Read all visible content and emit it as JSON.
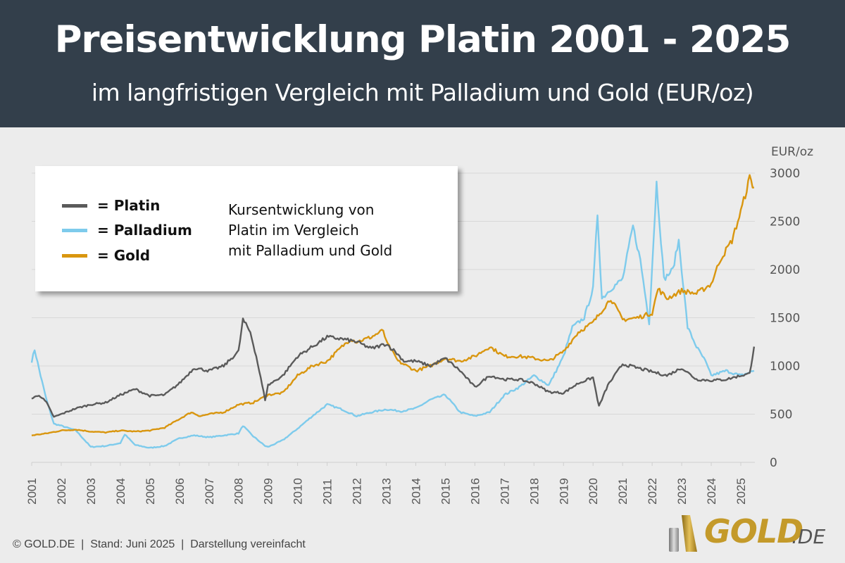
{
  "header": {
    "title": "Preisentwicklung Platin 2001 - 2025",
    "subtitle": "im langfristigen Vergleich mit Palladium und Gold (EUR/oz)"
  },
  "legend": {
    "items": [
      {
        "label": "= Platin",
        "color": "#5a5a5a"
      },
      {
        "label": "= Palladium",
        "color": "#7ecbec"
      },
      {
        "label": "= Gold",
        "color": "#d9960f"
      }
    ],
    "note_lines": [
      "Kursentwicklung von",
      "Platin im Vergleich",
      "mit Palladium und Gold"
    ]
  },
  "footer": {
    "text": "© GOLD.DE  |  Stand: Juni 2025  |  Darstellung vereinfacht"
  },
  "logo": {
    "text": "GOLD",
    "suffix": ".DE"
  },
  "chart_data": {
    "type": "line",
    "title": "Preisentwicklung Platin 2001 - 2025",
    "ylabel": "EUR/oz",
    "xlabel": "",
    "ylim": [
      0,
      3000
    ],
    "xlim": [
      2001,
      2025.45
    ],
    "y_ticks": [
      "0",
      "500",
      "1000",
      "1500",
      "2000",
      "2500",
      "3000"
    ],
    "x_ticks": [
      "2001",
      "2002",
      "2003",
      "2004",
      "2005",
      "2006",
      "2007",
      "2008",
      "2009",
      "2010",
      "2011",
      "2012",
      "2013",
      "2014",
      "2015",
      "2016",
      "2017",
      "2018",
      "2019",
      "2020",
      "2021",
      "2022",
      "2023",
      "2024",
      "2025"
    ],
    "grid": true,
    "legend_position": "top-left",
    "series": [
      {
        "name": "Platin",
        "color": "#5a5a5a",
        "x": [
          2001,
          2001.25,
          2001.5,
          2001.75,
          2002,
          2002.5,
          2003,
          2003.5,
          2004,
          2004.5,
          2005,
          2005.5,
          2006,
          2006.5,
          2007,
          2007.5,
          2008,
          2008.15,
          2008.4,
          2008.6,
          2008.9,
          2009,
          2009.5,
          2010,
          2010.5,
          2011,
          2011.5,
          2012,
          2012.5,
          2013,
          2013.3,
          2013.6,
          2014,
          2014.5,
          2015,
          2015.5,
          2016,
          2016.5,
          2017,
          2017.5,
          2018,
          2018.5,
          2019,
          2019.5,
          2020,
          2020.2,
          2020.5,
          2021,
          2021.5,
          2022,
          2022.5,
          2023,
          2023.5,
          2024,
          2024.5,
          2025,
          2025.3,
          2025.45
        ],
        "values": [
          660,
          700,
          620,
          470,
          500,
          560,
          600,
          620,
          700,
          760,
          690,
          700,
          820,
          980,
          950,
          1000,
          1150,
          1480,
          1350,
          1100,
          650,
          800,
          900,
          1100,
          1200,
          1300,
          1280,
          1250,
          1180,
          1230,
          1150,
          1050,
          1050,
          1000,
          1080,
          950,
          780,
          900,
          860,
          860,
          820,
          730,
          720,
          820,
          880,
          580,
          800,
          1020,
          980,
          940,
          900,
          980,
          860,
          850,
          860,
          900,
          920,
          1200
        ]
      },
      {
        "name": "Palladium",
        "color": "#7ecbec",
        "x": [
          2001,
          2001.1,
          2001.3,
          2001.5,
          2001.75,
          2002,
          2002.5,
          2003,
          2003.5,
          2004,
          2004.15,
          2004.5,
          2005,
          2005.5,
          2006,
          2006.5,
          2007,
          2007.5,
          2008,
          2008.15,
          2008.5,
          2008.9,
          2009,
          2009.5,
          2010,
          2010.5,
          2011,
          2011.5,
          2012,
          2012.5,
          2013,
          2013.5,
          2014,
          2014.5,
          2015,
          2015.5,
          2016,
          2016.5,
          2017,
          2017.5,
          2018,
          2018.5,
          2019,
          2019.3,
          2019.7,
          2020,
          2020.15,
          2020.3,
          2020.6,
          2021,
          2021.35,
          2021.6,
          2021.9,
          2022.15,
          2022.4,
          2022.7,
          2022.9,
          2023.2,
          2023.5,
          2023.8,
          2024,
          2024.5,
          2025,
          2025.45
        ],
        "values": [
          1050,
          1170,
          900,
          650,
          400,
          380,
          330,
          160,
          170,
          200,
          290,
          180,
          150,
          170,
          250,
          280,
          260,
          280,
          300,
          380,
          270,
          170,
          160,
          230,
          350,
          480,
          600,
          550,
          480,
          520,
          550,
          530,
          560,
          650,
          700,
          520,
          480,
          520,
          700,
          780,
          900,
          800,
          1100,
          1400,
          1500,
          1800,
          2580,
          1700,
          1800,
          1900,
          2450,
          2100,
          1450,
          2900,
          1900,
          2000,
          2300,
          1400,
          1200,
          1050,
          900,
          950,
          900,
          950
        ]
      },
      {
        "name": "Gold",
        "color": "#d9960f",
        "x": [
          2001,
          2001.5,
          2002,
          2002.5,
          2003,
          2003.5,
          2004,
          2004.5,
          2005,
          2005.5,
          2006,
          2006.4,
          2006.7,
          2007,
          2007.5,
          2008,
          2008.5,
          2009,
          2009.5,
          2010,
          2010.5,
          2011,
          2011.5,
          2011.8,
          2012,
          2012.5,
          2012.9,
          2013,
          2013.4,
          2013.7,
          2014,
          2014.5,
          2015,
          2015.5,
          2016,
          2016.5,
          2017,
          2017.5,
          2018,
          2018.5,
          2019,
          2019.5,
          2020,
          2020.6,
          2021,
          2021.5,
          2022,
          2022.2,
          2022.5,
          2023,
          2023.5,
          2024,
          2024.3,
          2024.7,
          2025,
          2025.3,
          2025.45
        ],
        "values": [
          280,
          300,
          330,
          340,
          320,
          310,
          330,
          320,
          330,
          360,
          450,
          520,
          480,
          500,
          520,
          600,
          620,
          700,
          720,
          900,
          1000,
          1050,
          1200,
          1280,
          1250,
          1300,
          1370,
          1250,
          1050,
          1000,
          950,
          1000,
          1080,
          1050,
          1100,
          1200,
          1100,
          1100,
          1080,
          1050,
          1150,
          1350,
          1450,
          1700,
          1480,
          1500,
          1550,
          1800,
          1700,
          1780,
          1750,
          1850,
          2100,
          2300,
          2600,
          2950,
          2850
        ]
      }
    ]
  }
}
